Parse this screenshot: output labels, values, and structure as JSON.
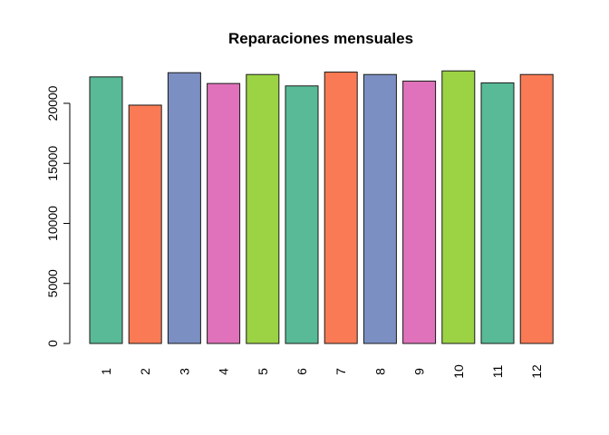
{
  "chart_data": {
    "type": "bar",
    "title": "Reparaciones mensuales",
    "xlabel": "",
    "ylabel": "",
    "categories": [
      "1",
      "2",
      "3",
      "4",
      "5",
      "6",
      "7",
      "8",
      "9",
      "10",
      "11",
      "12"
    ],
    "values": [
      22200,
      19850,
      22550,
      21650,
      22400,
      21450,
      22600,
      22400,
      21850,
      22700,
      21700,
      22400
    ],
    "colors": [
      "#58BA96",
      "#F97A54",
      "#7B8FC2",
      "#DF72BA",
      "#9BD344",
      "#58BA96",
      "#F97A54",
      "#7B8FC2",
      "#DF72BA",
      "#9BD344",
      "#58BA96",
      "#F97A54"
    ],
    "ylim": [
      0,
      22700
    ],
    "yticks": [
      0,
      5000,
      10000,
      15000,
      20000
    ],
    "ytick_labels": [
      "0",
      "5000",
      "10000",
      "15000",
      "20000"
    ],
    "grid": false,
    "legend": "none"
  }
}
